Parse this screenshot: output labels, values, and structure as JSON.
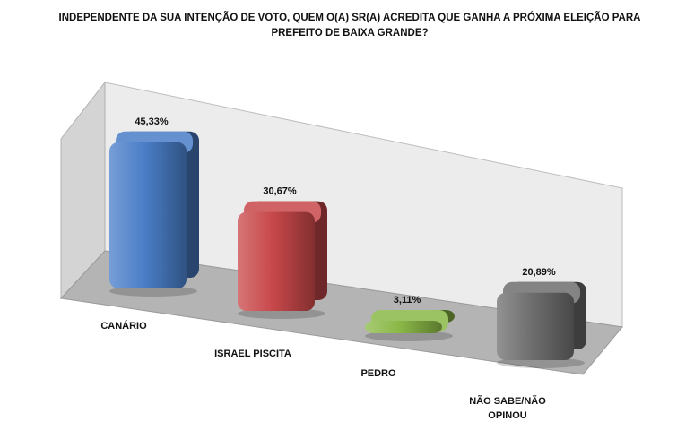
{
  "chart_data": {
    "type": "bar",
    "title_lines": [
      "INDEPENDENTE DA SUA INTENÇÃO DE VOTO, QUEM O(A) SR(A) ACREDITA QUE GANHA A PRÓXIMA ELEIÇÃO PARA",
      "PREFEITO DE BAIXA GRANDE?"
    ],
    "categories": [
      [
        "CANÁRIO"
      ],
      [
        "ISRAEL PISCITA"
      ],
      [
        "PEDRO"
      ],
      [
        "NÃO SABE/NÃO",
        "OPINOU"
      ]
    ],
    "values": [
      45.33,
      30.67,
      3.11,
      20.89
    ],
    "value_labels": [
      "45,33%",
      "30,67%",
      "3,11%",
      "20,89%"
    ],
    "colors": [
      "#4a7ec8",
      "#c8484a",
      "#8ab847",
      "#6e6e6e"
    ],
    "ylim": [
      0,
      50
    ],
    "grid": false,
    "legend": "none",
    "style": "3d-cylinder"
  }
}
